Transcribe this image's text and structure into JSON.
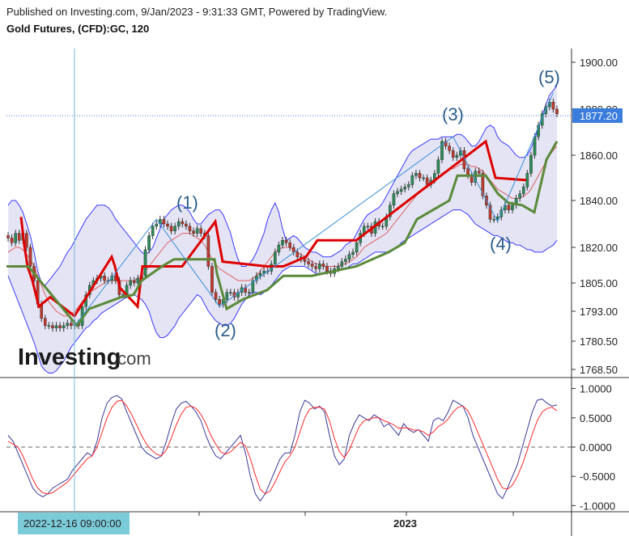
{
  "header": {
    "published": "Published on Investing.com, 9/Jan/2023 - 9:31:33 GMT, Powered by TradingView.",
    "symbol": "Gold Futures, (CFD):GC, 120"
  },
  "logo": {
    "text": "Investing",
    "suffix": ".com"
  },
  "price_badge": "1877.20",
  "crosshair_time": "2022-12-16 09:00:00",
  "colors": {
    "up_candle": "#2e8b57",
    "down_candle": "#c0392b",
    "bands_fill": "#e4e4f4",
    "bands_line": "#3a3aff",
    "red_step": "#dd0000",
    "green_step": "#5a8a3a",
    "wave_line": "#3a8fd6",
    "osc_blue": "#3a3a9a",
    "osc_red": "#ff2a2a",
    "badge": "#3b7ddd"
  },
  "chart_data": [
    {
      "type": "candlestick",
      "title": "Gold Futures, (CFD):GC, 120",
      "y_ticks": [
        "1900.00",
        "1880.00",
        "1860.00",
        "1840.00",
        "1820.00",
        "1805.00",
        "1793.00",
        "1780.50",
        "1768.50"
      ],
      "y_tick_values": [
        1900,
        1880,
        1860,
        1840,
        1820,
        1805,
        1793,
        1780.5,
        1768.5
      ],
      "x_labels": [
        "2023"
      ],
      "last_price": 1877.2,
      "close": [
        1824,
        1822,
        1826,
        1823,
        1826,
        1820,
        1812,
        1806,
        1796,
        1790,
        1787,
        1787,
        1786,
        1787,
        1786,
        1787,
        1788,
        1787,
        1788,
        1787,
        1795,
        1800,
        1804,
        1806,
        1807,
        1808,
        1806,
        1806,
        1808,
        1806,
        1800,
        1800,
        1804,
        1806,
        1805,
        1807,
        1808,
        1819,
        1825,
        1829,
        1830,
        1832,
        1830,
        1829,
        1827,
        1829,
        1831,
        1830,
        1829,
        1827,
        1826,
        1828,
        1826,
        1825,
        1812,
        1801,
        1798,
        1796,
        1798,
        1801,
        1801,
        1799,
        1801,
        1803,
        1801,
        1801,
        1806,
        1808,
        1809,
        1810,
        1810,
        1813,
        1818,
        1821,
        1823,
        1822,
        1820,
        1818,
        1816,
        1815,
        1814,
        1813,
        1812,
        1811,
        1813,
        1812,
        1810,
        1809,
        1811,
        1812,
        1814,
        1815,
        1817,
        1818,
        1822,
        1826,
        1829,
        1829,
        1826,
        1831,
        1829,
        1829,
        1833,
        1838,
        1843,
        1844,
        1845,
        1846,
        1847,
        1851,
        1852,
        1850,
        1850,
        1847,
        1849,
        1852,
        1858,
        1866,
        1864,
        1862,
        1859,
        1860,
        1862,
        1854,
        1851,
        1848,
        1853,
        1852,
        1842,
        1838,
        1832,
        1832,
        1833,
        1836,
        1838,
        1836,
        1838,
        1841,
        1843,
        1846,
        1852,
        1860,
        1868,
        1873,
        1878,
        1881,
        1883,
        1880,
        1878
      ],
      "bollinger_upper": [
        1838,
        1840,
        1840,
        1838,
        1835,
        1830,
        1825,
        1818,
        1810,
        1805,
        1804,
        1806,
        1808,
        1810,
        1812,
        1815,
        1818,
        1820,
        1823,
        1826,
        1829,
        1832,
        1834,
        1836,
        1838,
        1838,
        1838,
        1837,
        1835,
        1832,
        1830,
        1828,
        1826,
        1824,
        1822,
        1820,
        1818,
        1817,
        1818,
        1820,
        1824,
        1828,
        1832,
        1834,
        1836,
        1837,
        1838,
        1838,
        1837,
        1835,
        1832,
        1830,
        1830,
        1832,
        1834,
        1835,
        1836,
        1836,
        1834,
        1830,
        1826,
        1820,
        1815,
        1812,
        1812,
        1813,
        1815,
        1818,
        1822,
        1826,
        1832,
        1836,
        1839,
        1835,
        1828,
        1823,
        1824,
        1825,
        1824,
        1822,
        1820,
        1819,
        1818,
        1818,
        1817,
        1816,
        1816,
        1816,
        1817,
        1818,
        1819,
        1821,
        1822,
        1823,
        1826,
        1829,
        1832,
        1834,
        1835,
        1836,
        1837,
        1839,
        1842,
        1845,
        1848,
        1851,
        1854,
        1857,
        1860,
        1862,
        1863,
        1864,
        1865,
        1866,
        1867,
        1867,
        1867,
        1868,
        1868,
        1868,
        1868,
        1869,
        1869,
        1868,
        1866,
        1864,
        1864,
        1866,
        1869,
        1872,
        1873,
        1872,
        1868,
        1866,
        1865,
        1864,
        1862,
        1860,
        1859,
        1859,
        1860,
        1863,
        1867,
        1872,
        1877,
        1882,
        1886,
        1888,
        1890
      ],
      "bollinger_lower": [
        1808,
        1804,
        1800,
        1796,
        1792,
        1788,
        1784,
        1780,
        1775,
        1770,
        1768,
        1767,
        1767,
        1768,
        1770,
        1772,
        1775,
        1778,
        1780,
        1782,
        1784,
        1786,
        1787,
        1789,
        1790,
        1792,
        1793,
        1794,
        1795,
        1796,
        1797,
        1798,
        1799,
        1800,
        1800,
        1799,
        1798,
        1796,
        1793,
        1788,
        1784,
        1782,
        1782,
        1783,
        1785,
        1787,
        1790,
        1792,
        1794,
        1796,
        1798,
        1800,
        1799,
        1796,
        1793,
        1791,
        1789,
        1788,
        1787,
        1787,
        1788,
        1790,
        1793,
        1796,
        1798,
        1800,
        1801,
        1801,
        1800,
        1801,
        1802,
        1804,
        1806,
        1808,
        1810,
        1811,
        1812,
        1812,
        1812,
        1812,
        1812,
        1811,
        1810,
        1809,
        1809,
        1809,
        1810,
        1810,
        1810,
        1810,
        1811,
        1811,
        1812,
        1813,
        1813,
        1814,
        1815,
        1816,
        1817,
        1818,
        1818,
        1818,
        1818,
        1818,
        1819,
        1820,
        1822,
        1823,
        1824,
        1825,
        1826,
        1827,
        1828,
        1829,
        1830,
        1831,
        1832,
        1833,
        1834,
        1835,
        1836,
        1836,
        1836,
        1835,
        1834,
        1832,
        1830,
        1829,
        1828,
        1827,
        1826,
        1825,
        1825,
        1824,
        1823,
        1822,
        1822,
        1821,
        1821,
        1820,
        1819,
        1819,
        1818,
        1818,
        1818,
        1819,
        1820,
        1821,
        1823
      ],
      "moving_average": [
        1818,
        1819,
        1820,
        1820,
        1819,
        1817,
        1815,
        1812,
        1808,
        1804,
        1800,
        1797,
        1795,
        1793,
        1792,
        1791,
        1791,
        1792,
        1793,
        1795,
        1797,
        1799,
        1801,
        1802,
        1803,
        1804,
        1805,
        1806,
        1806,
        1806,
        1806,
        1806,
        1806,
        1806,
        1806,
        1807,
        1808,
        1810,
        1812,
        1814,
        1816,
        1818,
        1820,
        1822,
        1823,
        1824,
        1825,
        1826,
        1826,
        1826,
        1825,
        1824,
        1823,
        1821,
        1818,
        1815,
        1813,
        1811,
        1810,
        1809,
        1808,
        1807,
        1806,
        1806,
        1806,
        1806,
        1807,
        1808,
        1810,
        1812,
        1814,
        1816,
        1818,
        1819,
        1820,
        1820,
        1820,
        1819,
        1818,
        1817,
        1816,
        1815,
        1814,
        1813,
        1813,
        1812,
        1812,
        1812,
        1812,
        1812,
        1813,
        1813,
        1814,
        1815,
        1816,
        1818,
        1820,
        1821,
        1822,
        1823,
        1824,
        1825,
        1826,
        1828,
        1830,
        1832,
        1834,
        1836,
        1838,
        1840,
        1842,
        1844,
        1845,
        1846,
        1847,
        1848,
        1850,
        1852,
        1853,
        1854,
        1854,
        1855,
        1856,
        1856,
        1856,
        1855,
        1855,
        1854,
        1853,
        1851,
        1849,
        1847,
        1845,
        1844,
        1843,
        1842,
        1841,
        1841,
        1841,
        1842,
        1843,
        1845,
        1848,
        1851,
        1854,
        1857,
        1860,
        1862,
        1864
      ],
      "resistance_step": [
        null,
        null,
        null,
        null,
        null,
        null,
        1833,
        1828,
        1820,
        1814,
        1806,
        1800,
        1797,
        1795,
        1794,
        1793,
        1792,
        1792,
        1791,
        1791,
        1791,
        1791,
        1791,
        1791,
        1791,
        1791,
        1791,
        1791,
        1791,
        1800,
        1810,
        1809,
        1808,
        1808,
        1806,
        1805,
        1806,
        1806,
        1806,
        1818,
        1818,
        1818,
        1818,
        1818,
        1818,
        1818,
        1818,
        1818,
        1818,
        1818,
        1818,
        1818,
        1818,
        1833,
        1825,
        1820,
        1815,
        1812,
        1812,
        1812,
        1812,
        1812,
        1812,
        1812,
        1812,
        1812,
        1812,
        1812,
        1812,
        1812,
        1812,
        1812,
        1812,
        1812,
        1812,
        1812,
        1812,
        1812,
        1812,
        1812,
        1812,
        1812,
        1812,
        1812,
        1812,
        1812,
        1812,
        1812,
        1812,
        1812,
        1812,
        1812,
        1812,
        1812,
        1812,
        1812,
        1812,
        1812,
        1812,
        1812,
        1812,
        1812,
        1812,
        1812,
        1812,
        1812,
        1812,
        1812,
        1812,
        1812,
        1812,
        1812,
        1812,
        1812,
        1812,
        1812,
        1812,
        1812,
        1812,
        1812,
        1812,
        1812,
        1812,
        1812,
        1812,
        1812,
        1812,
        1812,
        1812,
        1812,
        1812,
        1812,
        1812,
        1812,
        1812,
        1812,
        1812,
        1812,
        1812,
        1812,
        1812,
        1812,
        1812,
        1812,
        1812,
        1812,
        1812,
        1812,
        1812
      ],
      "support_step": [
        1812,
        1812,
        1812,
        1812,
        1812,
        1812,
        1812,
        1812,
        1812,
        1812,
        1812,
        1812,
        1812,
        1812,
        1812,
        1812,
        1812,
        1812,
        1812,
        1812,
        1812,
        1812,
        1812,
        1812,
        1812,
        1812,
        1812,
        1812,
        1812,
        1812,
        1812,
        1812,
        1812,
        1812,
        1812,
        1812,
        1812,
        1812,
        1812,
        1812,
        1812,
        1812,
        1812,
        1812,
        1812,
        1812,
        1812,
        1812,
        1812,
        1812,
        1812,
        1812,
        1812,
        1812,
        1812,
        1812,
        1812,
        1812,
        1812,
        1812,
        1812,
        1812,
        1812,
        1812,
        1812,
        1812,
        1812,
        1812,
        1812,
        1812,
        1812,
        1812,
        1812,
        1812,
        1812,
        1812,
        1812,
        1812,
        1812,
        1812,
        1812,
        1812,
        1812,
        1812,
        1812,
        1812,
        1812,
        1812,
        1812,
        1812,
        1812,
        1812,
        1812,
        1812,
        1812,
        1812,
        1812,
        1812,
        1812,
        1812,
        1812,
        1812,
        1812,
        1812,
        1812,
        1812,
        1812,
        1812,
        1812,
        1812,
        1812,
        1812,
        1812,
        1812,
        1812,
        1812,
        1812,
        1812,
        1812,
        1812,
        1812,
        1812,
        1812,
        1812,
        1812,
        1812,
        1812,
        1812,
        1812,
        1812,
        1812,
        1812,
        1812,
        1812,
        1812,
        1812,
        1812,
        1812,
        1812,
        1812,
        1812,
        1812,
        1812,
        1812,
        1812,
        1812,
        1812,
        1812,
        1812
      ],
      "wave_labels": [
        {
          "label": "(1)",
          "bar": 40,
          "price": 1832
        },
        {
          "label": "(2)",
          "bar": 57,
          "price": 1795
        },
        {
          "label": "(3)",
          "bar": 120,
          "price": 1868
        },
        {
          "label": "(4)",
          "bar": 132,
          "price": 1831
        },
        {
          "label": "(5)",
          "bar": 147,
          "price": 1887
        }
      ],
      "wave_path": [
        {
          "bar": 18,
          "price": 1787
        },
        {
          "bar": 40,
          "price": 1832
        },
        {
          "bar": 57,
          "price": 1795
        },
        {
          "bar": 120,
          "price": 1868
        },
        {
          "bar": 132,
          "price": 1831
        },
        {
          "bar": 147,
          "price": 1887
        }
      ]
    },
    {
      "type": "line",
      "y_ticks": [
        "1.0000",
        "0.5000",
        "0.0000",
        "-0.5000",
        "-1.0000"
      ],
      "y_tick_values": [
        1,
        0.5,
        0,
        -0.5,
        -1
      ],
      "ylim": [
        -1.05,
        1.05
      ],
      "series": [
        {
          "values": [
            0.2,
            0.1,
            -0.1,
            -0.3,
            -0.5,
            -0.7,
            -0.8,
            -0.85,
            -0.8,
            -0.7,
            -0.65,
            -0.6,
            -0.55,
            -0.4,
            -0.3,
            -0.2,
            -0.1,
            -0.15,
            0.1,
            0.5,
            0.75,
            0.85,
            0.88,
            0.82,
            0.6,
            0.4,
            0.2,
            0.0,
            -0.1,
            -0.15,
            -0.2,
            -0.15,
            0.1,
            0.4,
            0.65,
            0.75,
            0.78,
            0.7,
            0.6,
            0.45,
            0.2,
            0.0,
            -0.15,
            -0.2,
            -0.1,
            0.0,
            0.1,
            0.2,
            -0.1,
            -0.5,
            -0.8,
            -0.92,
            -0.8,
            -0.6,
            -0.4,
            -0.2,
            -0.1,
            -0.1,
            0.2,
            0.6,
            0.8,
            0.75,
            0.65,
            0.7,
            0.6,
            0.2,
            -0.15,
            -0.3,
            -0.2,
            0.2,
            0.4,
            0.55,
            0.5,
            0.45,
            0.55,
            0.5,
            0.35,
            0.4,
            0.3,
            0.2,
            0.4,
            0.3,
            0.25,
            0.3,
            0.2,
            0.1,
            0.45,
            0.5,
            0.45,
            0.6,
            0.8,
            0.75,
            0.7,
            0.5,
            0.2,
            0.0,
            -0.2,
            -0.4,
            -0.6,
            -0.8,
            -0.88,
            -0.7,
            -0.5,
            -0.3,
            0.0,
            0.3,
            0.6,
            0.8,
            0.82,
            0.75,
            0.7,
            0.72
          ]
        },
        {
          "values": [
            0.1,
            0.05,
            0.0,
            -0.15,
            -0.35,
            -0.55,
            -0.7,
            -0.78,
            -0.8,
            -0.78,
            -0.72,
            -0.66,
            -0.6,
            -0.5,
            -0.4,
            -0.3,
            -0.2,
            -0.15,
            0.0,
            0.25,
            0.5,
            0.68,
            0.78,
            0.8,
            0.7,
            0.55,
            0.38,
            0.2,
            0.05,
            -0.05,
            -0.12,
            -0.15,
            -0.05,
            0.15,
            0.38,
            0.56,
            0.68,
            0.7,
            0.66,
            0.56,
            0.4,
            0.2,
            0.05,
            -0.08,
            -0.12,
            -0.08,
            0.0,
            0.08,
            0.02,
            -0.2,
            -0.48,
            -0.72,
            -0.8,
            -0.75,
            -0.6,
            -0.42,
            -0.25,
            -0.15,
            0.0,
            0.25,
            0.5,
            0.65,
            0.68,
            0.68,
            0.65,
            0.45,
            0.15,
            -0.08,
            -0.18,
            -0.05,
            0.15,
            0.35,
            0.45,
            0.48,
            0.5,
            0.5,
            0.45,
            0.42,
            0.38,
            0.32,
            0.33,
            0.32,
            0.29,
            0.29,
            0.26,
            0.2,
            0.26,
            0.35,
            0.4,
            0.48,
            0.6,
            0.68,
            0.7,
            0.62,
            0.45,
            0.25,
            0.05,
            -0.15,
            -0.35,
            -0.55,
            -0.7,
            -0.72,
            -0.65,
            -0.5,
            -0.3,
            -0.05,
            0.22,
            0.45,
            0.6,
            0.66,
            0.68,
            0.62
          ]
        }
      ]
    }
  ]
}
